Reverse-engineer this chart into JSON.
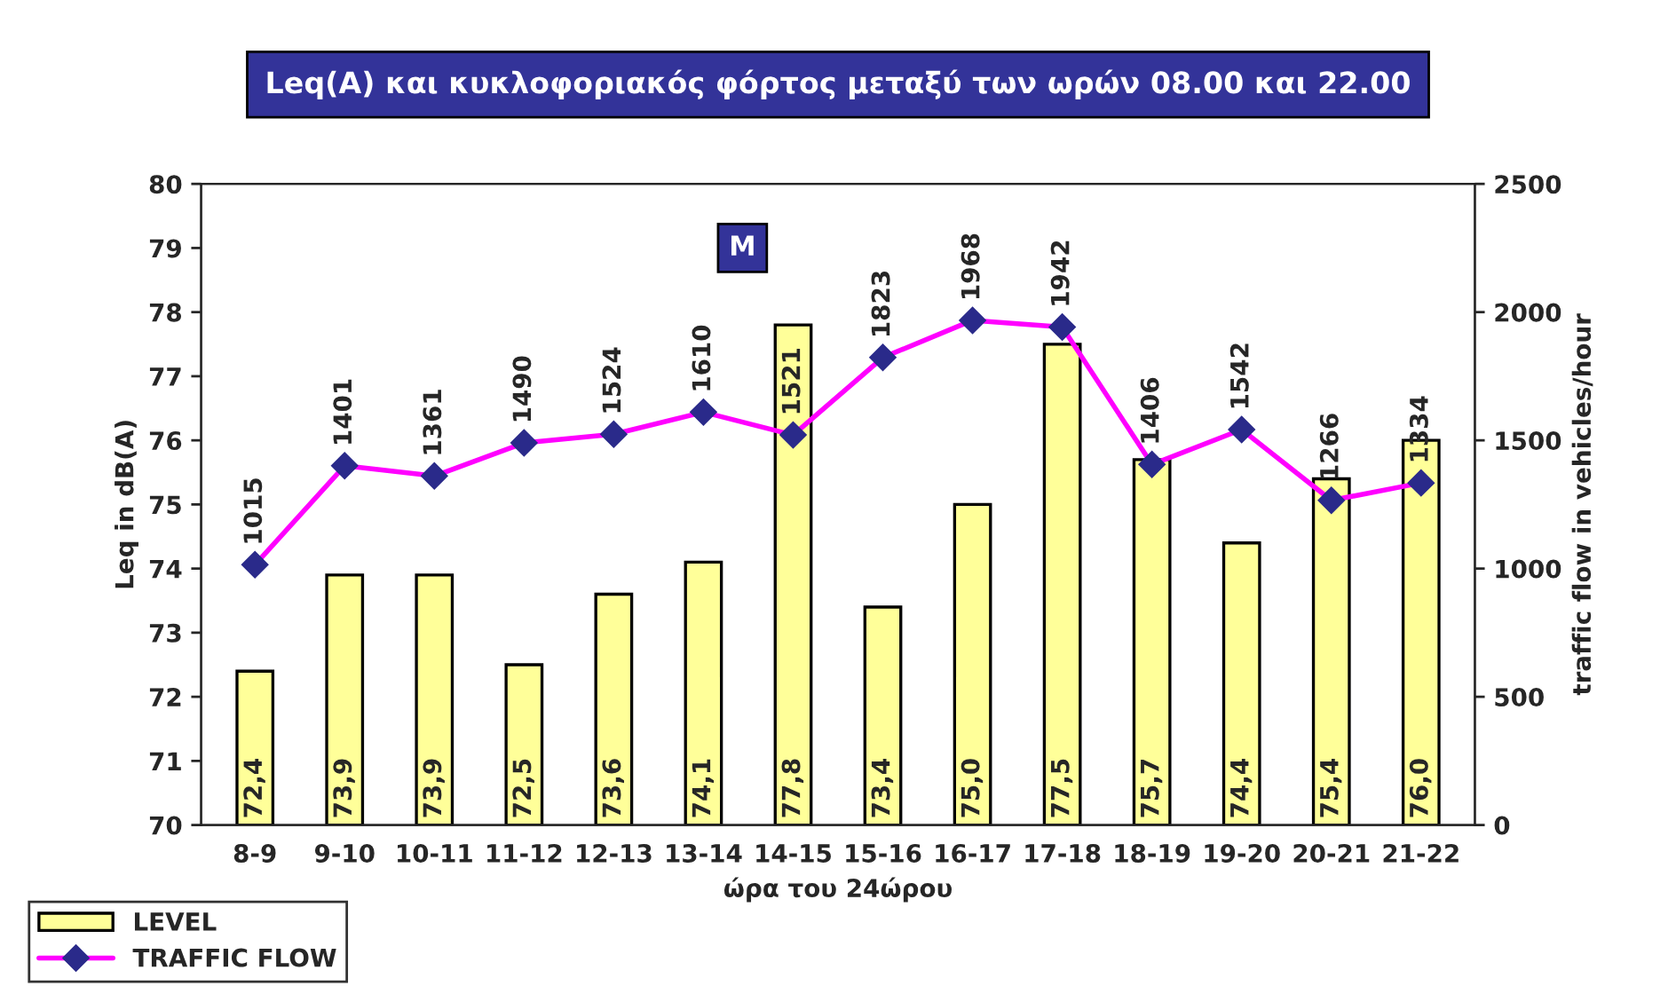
{
  "chart_data": {
    "type": "bar",
    "title": "Leq(A) και κυκλοφοριακός φόρτος μεταξύ των ωρών 08.00 και 22.00",
    "xlabel": "ώρα του 24ώρου",
    "ylabel": "Leq in dB(A)",
    "y2label": "traffic flow in vehicles/hour",
    "annotations": [
      "M"
    ],
    "categories": [
      "8-9",
      "9-10",
      "10-11",
      "11-12",
      "12-13",
      "13-14",
      "14-15",
      "15-16",
      "16-17",
      "17-18",
      "18-19",
      "19-20",
      "20-21",
      "21-22"
    ],
    "series": [
      {
        "name": "LEVEL",
        "color": "#ffff99",
        "values": [
          72.4,
          73.9,
          73.9,
          72.5,
          73.6,
          74.1,
          77.8,
          73.4,
          75.0,
          77.5,
          75.7,
          74.4,
          75.4,
          76.0
        ],
        "value_labels": [
          "72,4",
          "73,9",
          "73,9",
          "72,5",
          "73,6",
          "74,1",
          "77,8",
          "73,4",
          "75,0",
          "77,5",
          "75,7",
          "74,4",
          "75,4",
          "76,0"
        ]
      },
      {
        "name": "TRAFFIC FLOW",
        "type": "line",
        "axis": "y2",
        "color": "#ff00ff",
        "marker": "diamond",
        "values": [
          1015,
          1401,
          1361,
          1490,
          1524,
          1610,
          1521,
          1823,
          1968,
          1942,
          1406,
          1542,
          1266,
          1334
        ],
        "value_labels": [
          "1015",
          "1401",
          "1361",
          "1490",
          "1524",
          "1610",
          "1521",
          "1823",
          "1968",
          "1942",
          "1406",
          "1542",
          "1266",
          "1334"
        ]
      }
    ],
    "ylim": [
      70,
      80
    ],
    "yticks": [
      70,
      71,
      72,
      73,
      74,
      75,
      76,
      77,
      78,
      79,
      80
    ],
    "y2lim": [
      0,
      2500
    ],
    "y2ticks": [
      0,
      500,
      1000,
      1500,
      2000,
      2500
    ],
    "grid": false,
    "legend": "bottom left"
  }
}
